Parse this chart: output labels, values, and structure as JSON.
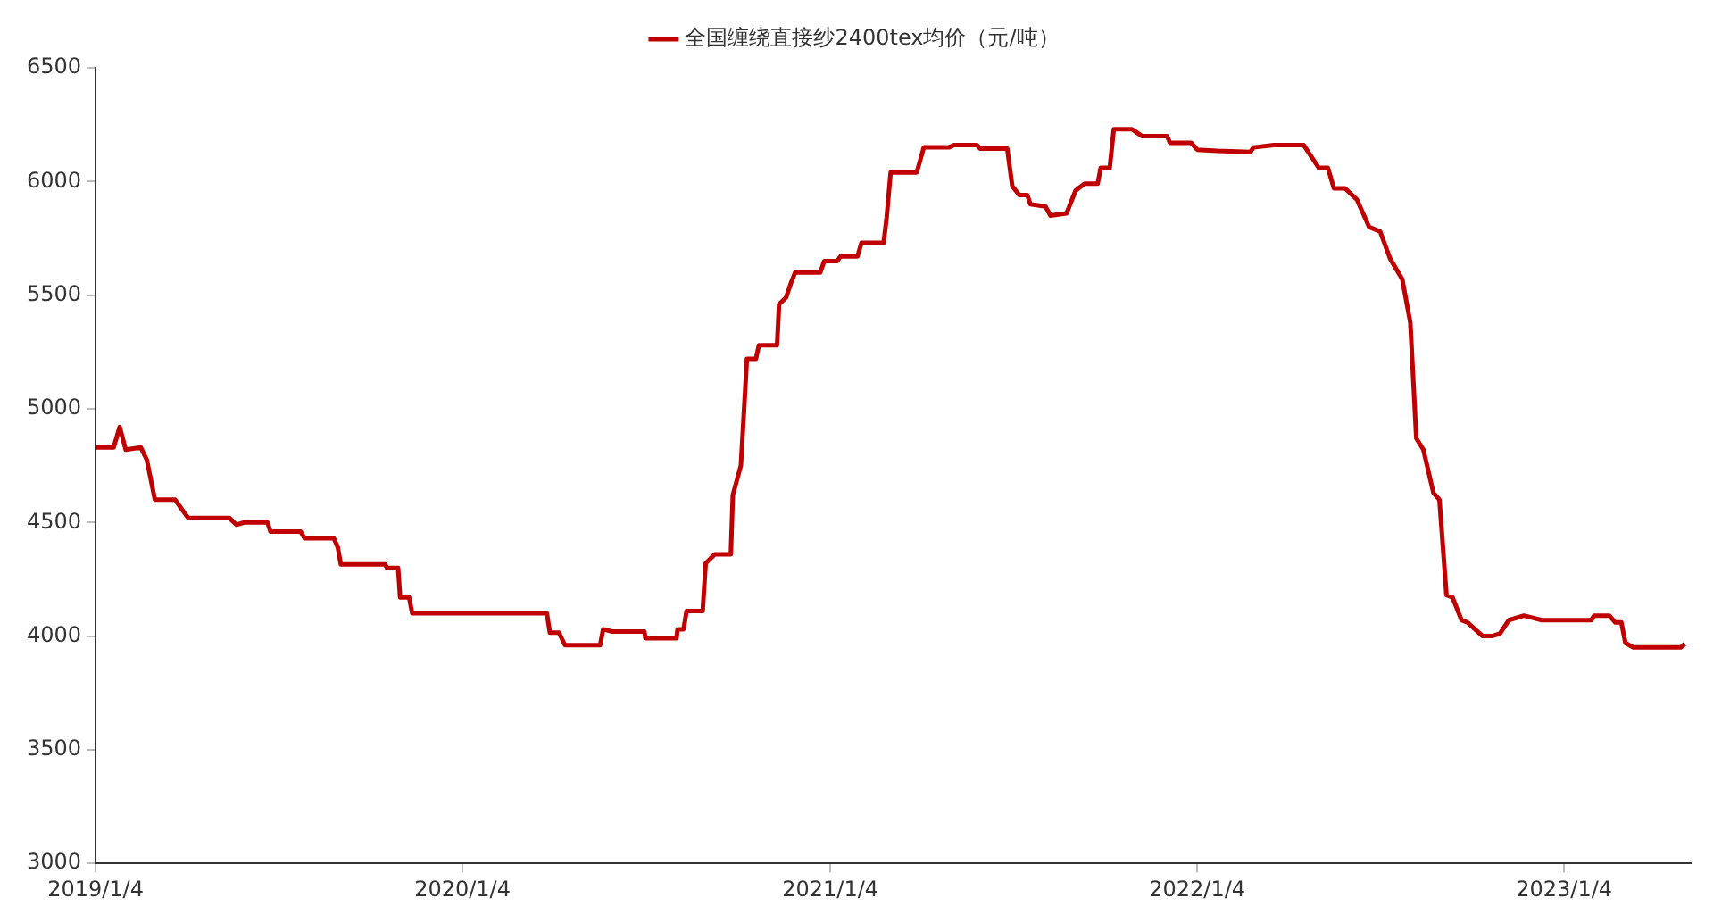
{
  "chart_data": {
    "type": "line",
    "x": [
      "2019-01-04",
      "2019-01-22",
      "2019-01-28",
      "2019-02-03",
      "2019-02-18",
      "2019-02-24",
      "2019-03-04",
      "2019-03-24",
      "2019-04-06",
      "2019-05-17",
      "2019-05-24",
      "2019-06-01",
      "2019-06-24",
      "2019-06-27",
      "2019-07-27",
      "2019-07-31",
      "2019-08-29",
      "2019-09-02",
      "2019-09-05",
      "2019-10-19",
      "2019-10-21",
      "2019-11-01",
      "2019-11-03",
      "2019-11-12",
      "2019-11-15",
      "2020-03-28",
      "2020-03-31",
      "2020-04-09",
      "2020-04-15",
      "2020-05-20",
      "2020-05-23",
      "2020-06-01",
      "2020-07-03",
      "2020-07-04",
      "2020-08-04",
      "2020-08-05",
      "2020-08-11",
      "2020-08-14",
      "2020-08-30",
      "2020-09-02",
      "2020-09-11",
      "2020-09-27",
      "2020-09-29",
      "2020-10-07",
      "2020-10-11",
      "2020-10-13",
      "2020-10-22",
      "2020-10-25",
      "2020-11-12",
      "2020-11-14",
      "2020-11-21",
      "2020-11-26",
      "2020-11-30",
      "2020-12-25",
      "2020-12-29",
      "2021-01-11",
      "2021-01-14",
      "2021-01-31",
      "2021-02-04",
      "2021-02-26",
      "2021-03-01",
      "2021-03-05",
      "2021-03-31",
      "2021-04-07",
      "2021-05-02",
      "2021-05-07",
      "2021-05-30",
      "2021-06-02",
      "2021-06-29",
      "2021-07-04",
      "2021-07-11",
      "2021-07-19",
      "2021-07-22",
      "2021-08-06",
      "2021-08-11",
      "2021-08-27",
      "2021-09-05",
      "2021-09-14",
      "2021-09-27",
      "2021-09-30",
      "2021-10-09",
      "2021-10-13",
      "2021-10-31",
      "2021-11-10",
      "2021-12-05",
      "2021-12-08",
      "2021-12-29",
      "2022-01-04",
      "2022-01-24",
      "2022-02-26",
      "2022-03-01",
      "2022-03-21",
      "2022-04-20",
      "2022-05-05",
      "2022-05-14",
      "2022-05-20",
      "2022-05-31",
      "2022-06-12",
      "2022-06-24",
      "2022-07-05",
      "2022-07-15",
      "2022-07-27",
      "2022-08-04",
      "2022-08-10",
      "2022-08-17",
      "2022-08-27",
      "2022-09-02",
      "2022-09-09",
      "2022-09-15",
      "2022-09-24",
      "2022-09-30",
      "2022-10-15",
      "2022-10-24",
      "2022-11-01",
      "2022-11-10",
      "2022-11-25",
      "2022-12-13",
      "2023-01-31",
      "2023-02-03",
      "2023-02-18",
      "2023-02-24",
      "2023-03-02",
      "2023-03-06",
      "2023-03-14",
      "2023-04-30",
      "2023-05-04"
    ],
    "series": [
      {
        "name": "全国缠绕直接纱2400tex均价（元/吨）",
        "color": "#c00000",
        "values": [
          4830,
          4830,
          4920,
          4820,
          4830,
          4775,
          4600,
          4600,
          4520,
          4520,
          4490,
          4500,
          4500,
          4460,
          4460,
          4430,
          4430,
          4390,
          4315,
          4315,
          4300,
          4300,
          4170,
          4170,
          4100,
          4100,
          4015,
          4015,
          3960,
          3960,
          4030,
          4020,
          4020,
          3990,
          3990,
          4030,
          4030,
          4110,
          4110,
          4320,
          4360,
          4360,
          4620,
          4750,
          5060,
          5220,
          5220,
          5280,
          5280,
          5460,
          5490,
          5555,
          5600,
          5600,
          5650,
          5650,
          5670,
          5670,
          5730,
          5730,
          5840,
          6040,
          6040,
          6150,
          6150,
          6160,
          6160,
          6145,
          6145,
          5980,
          5940,
          5940,
          5900,
          5890,
          5850,
          5860,
          5960,
          5990,
          5990,
          6060,
          6060,
          6230,
          6230,
          6200,
          6200,
          6170,
          6170,
          6140,
          6135,
          6130,
          6150,
          6160,
          6160,
          6060,
          6060,
          5970,
          5970,
          5920,
          5800,
          5780,
          5660,
          5570,
          5380,
          4870,
          4820,
          4630,
          4600,
          4180,
          4170,
          4070,
          4060,
          4000,
          4000,
          4010,
          4070,
          4090,
          4070,
          4070,
          4090,
          4090,
          4060,
          4060,
          3970,
          3950,
          3950,
          3965
        ]
      }
    ],
    "xlim": [
      "2019-01-04",
      "2023-05-10"
    ],
    "xticks": [
      {
        "value": "2019-01-04",
        "label": "2019/1/4"
      },
      {
        "value": "2020-01-04",
        "label": "2020/1/4"
      },
      {
        "value": "2021-01-04",
        "label": "2021/1/4"
      },
      {
        "value": "2022-01-04",
        "label": "2022/1/4"
      },
      {
        "value": "2023-01-04",
        "label": "2023/1/4"
      }
    ],
    "ylim": [
      3000,
      6500
    ],
    "yticks": [
      3000,
      3500,
      4000,
      4500,
      5000,
      5500,
      6000,
      6500
    ],
    "grid": false,
    "legend": "top",
    "marker": "none",
    "line_style": "solid"
  }
}
